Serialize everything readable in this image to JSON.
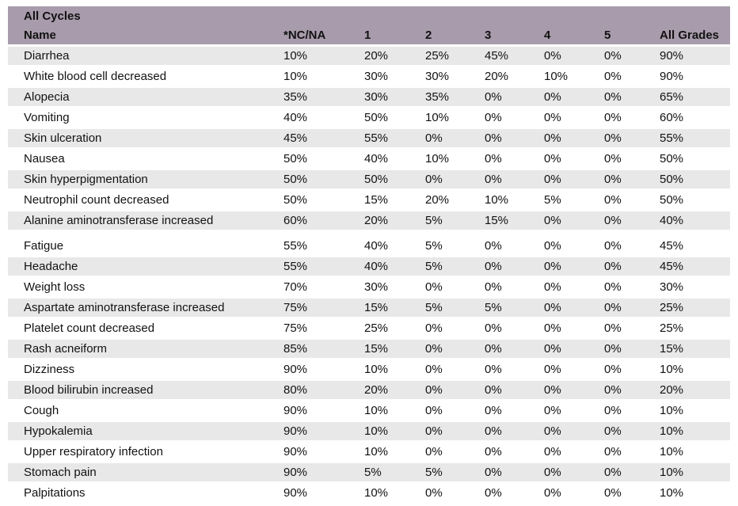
{
  "table": {
    "title": "All Cycles",
    "columns": [
      "Name",
      "*NC/NA",
      "1",
      "2",
      "3",
      "4",
      "5",
      "All Grades"
    ],
    "rows": [
      {
        "name": "Diarrhea",
        "values": [
          "10%",
          "20%",
          "25%",
          "45%",
          "0%",
          "0%",
          "90%"
        ]
      },
      {
        "name": "White blood cell decreased",
        "values": [
          "10%",
          "30%",
          "30%",
          "20%",
          "10%",
          "0%",
          "90%"
        ]
      },
      {
        "name": "Alopecia",
        "values": [
          "35%",
          "30%",
          "35%",
          "0%",
          "0%",
          "0%",
          "65%"
        ]
      },
      {
        "name": "Vomiting",
        "values": [
          "40%",
          "50%",
          "10%",
          "0%",
          "0%",
          "0%",
          "60%"
        ]
      },
      {
        "name": "Skin ulceration",
        "values": [
          "45%",
          "55%",
          "0%",
          "0%",
          "0%",
          "0%",
          "55%"
        ]
      },
      {
        "name": "Nausea",
        "values": [
          "50%",
          "40%",
          "10%",
          "0%",
          "0%",
          "0%",
          "50%"
        ]
      },
      {
        "name": "Skin hyperpigmentation",
        "values": [
          "50%",
          "50%",
          "0%",
          "0%",
          "0%",
          "0%",
          "50%"
        ]
      },
      {
        "name": "Neutrophil count decreased",
        "values": [
          "50%",
          "15%",
          "20%",
          "10%",
          "5%",
          "0%",
          "50%"
        ]
      },
      {
        "name": "Alanine aminotransferase increased",
        "values": [
          "60%",
          "20%",
          "5%",
          "15%",
          "0%",
          "0%",
          "40%"
        ]
      },
      {
        "name": "Fatigue",
        "values": [
          "55%",
          "40%",
          "5%",
          "0%",
          "0%",
          "0%",
          "45%"
        ]
      },
      {
        "name": "Headache",
        "values": [
          "55%",
          "40%",
          "5%",
          "0%",
          "0%",
          "0%",
          "45%"
        ]
      },
      {
        "name": "Weight loss",
        "values": [
          "70%",
          "30%",
          "0%",
          "0%",
          "0%",
          "0%",
          "30%"
        ]
      },
      {
        "name": "Aspartate aminotransferase increased",
        "values": [
          "75%",
          "15%",
          "5%",
          "5%",
          "0%",
          "0%",
          "25%"
        ]
      },
      {
        "name": "Platelet count decreased",
        "values": [
          "75%",
          "25%",
          "0%",
          "0%",
          "0%",
          "0%",
          "25%"
        ]
      },
      {
        "name": "Rash acneiform",
        "values": [
          "85%",
          "15%",
          "0%",
          "0%",
          "0%",
          "0%",
          "15%"
        ]
      },
      {
        "name": "Dizziness",
        "values": [
          "90%",
          "10%",
          "0%",
          "0%",
          "0%",
          "0%",
          "10%"
        ]
      },
      {
        "name": "Blood bilirubin increased",
        "values": [
          "80%",
          "20%",
          "0%",
          "0%",
          "0%",
          "0%",
          "20%"
        ]
      },
      {
        "name": "Cough",
        "values": [
          "90%",
          "10%",
          "0%",
          "0%",
          "0%",
          "0%",
          "10%"
        ]
      },
      {
        "name": "Hypokalemia",
        "values": [
          "90%",
          "10%",
          "0%",
          "0%",
          "0%",
          "0%",
          "10%"
        ]
      },
      {
        "name": "Upper respiratory infection",
        "values": [
          "90%",
          "10%",
          "0%",
          "0%",
          "0%",
          "0%",
          "10%"
        ]
      },
      {
        "name": "Stomach pain",
        "values": [
          "90%",
          "5%",
          "5%",
          "0%",
          "0%",
          "0%",
          "10%"
        ]
      },
      {
        "name": "Palpitations",
        "values": [
          "90%",
          "10%",
          "0%",
          "0%",
          "0%",
          "0%",
          "10%"
        ]
      }
    ],
    "section_break_after_row": 8
  },
  "colors": {
    "header_bg": "#a89bab",
    "stripe_bg": "#e8e8e9",
    "text": "#121212"
  }
}
